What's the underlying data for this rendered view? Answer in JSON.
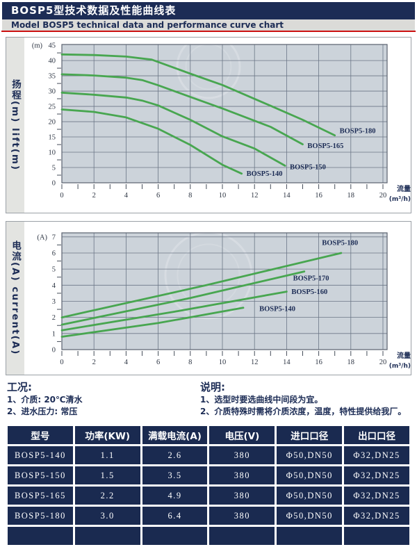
{
  "header": {
    "title_cn": "BOSP5型技术数据及性能曲线表",
    "title_en": "Model BOSP5 technical data and performance curve chart"
  },
  "chart_data": [
    {
      "type": "line",
      "y_axis_title": "扬程(m) lift(m)",
      "y_unit": "(m)",
      "x_label_line1": "流量",
      "x_label_line2": "(m³/h)",
      "xlim": [
        0,
        20
      ],
      "ylim": [
        0,
        45
      ],
      "x_ticks": [
        0,
        2,
        4,
        6,
        8,
        10,
        12,
        14,
        16,
        18,
        20
      ],
      "y_ticks": [
        0,
        5,
        10,
        15,
        20,
        25,
        30,
        35,
        40,
        45
      ],
      "grid": true,
      "series": [
        {
          "name": "BOSP5-180",
          "points": [
            [
              0,
              42
            ],
            [
              2,
              41.8
            ],
            [
              4,
              41.3
            ],
            [
              5.6,
              40.3
            ],
            [
              8,
              35.7
            ],
            [
              10,
              32
            ],
            [
              13,
              25.2
            ],
            [
              15,
              20.6
            ],
            [
              17,
              15.5
            ]
          ],
          "label_at": [
            17.3,
            16.3
          ]
        },
        {
          "name": "BOSP5-165",
          "points": [
            [
              0,
              35.5
            ],
            [
              2,
              35.1
            ],
            [
              4,
              34.4
            ],
            [
              5,
              33.6
            ],
            [
              6,
              31.9
            ],
            [
              8,
              28.1
            ],
            [
              10,
              24.3
            ],
            [
              13,
              18.3
            ],
            [
              15,
              12.6
            ]
          ],
          "label_at": [
            15.3,
            11.4
          ]
        },
        {
          "name": "BOSP5-150",
          "points": [
            [
              0,
              29.5
            ],
            [
              2,
              28.8
            ],
            [
              4,
              27.9
            ],
            [
              5,
              26.9
            ],
            [
              6,
              25.3
            ],
            [
              8,
              20.6
            ],
            [
              10,
              15.2
            ],
            [
              12,
              11.2
            ],
            [
              13.9,
              5.6
            ]
          ],
          "label_at": [
            14.2,
            4.4
          ]
        },
        {
          "name": "BOSP5-140",
          "points": [
            [
              0,
              24
            ],
            [
              2,
              23.2
            ],
            [
              4,
              21.4
            ],
            [
              6,
              17.7
            ],
            [
              8,
              12.4
            ],
            [
              10,
              5.9
            ],
            [
              11.2,
              3.0
            ]
          ],
          "label_at": [
            11.5,
            2.3
          ]
        }
      ]
    },
    {
      "type": "line",
      "y_axis_title": "电流(A) current(A)",
      "y_unit": "(A)",
      "x_label_line1": "流量",
      "x_label_line2": "(m³/h)",
      "xlim": [
        0,
        20
      ],
      "ylim": [
        0,
        7
      ],
      "x_ticks": [
        0,
        2,
        4,
        6,
        8,
        10,
        12,
        14,
        16,
        18,
        20
      ],
      "y_ticks": [
        0,
        1,
        2,
        3,
        4,
        5,
        6,
        7
      ],
      "grid": true,
      "series": [
        {
          "name": "BOSP5-180",
          "points": [
            [
              0,
              2.0
            ],
            [
              9,
              4.0
            ],
            [
              17.4,
              6.0
            ]
          ],
          "label_at": [
            16.2,
            6.5
          ]
        },
        {
          "name": "BOSP5-170",
          "points": [
            [
              0,
              1.55
            ],
            [
              8,
              3.2
            ],
            [
              15.1,
              4.85
            ]
          ],
          "label_at": [
            14.4,
            4.3
          ]
        },
        {
          "name": "BOSP5-160",
          "points": [
            [
              0,
              1.2
            ],
            [
              7,
              2.35
            ],
            [
              14,
              3.6
            ]
          ],
          "label_at": [
            14.3,
            3.45
          ]
        },
        {
          "name": "BOSP5-140",
          "points": [
            [
              0,
              0.8
            ],
            [
              6,
              1.65
            ],
            [
              11.3,
              2.6
            ]
          ],
          "label_at": [
            12.3,
            2.4
          ]
        }
      ]
    }
  ],
  "conditions": {
    "heading": "工况:",
    "items": [
      "1、介质: 20℃清水",
      "2、进水压力: 常压"
    ]
  },
  "notes": {
    "heading": "说明:",
    "items": [
      "1、选型时要选曲线中间段为宜。",
      "2、介质特殊时需将介质浓度，温度，特性提供给我厂。"
    ]
  },
  "table": {
    "headers": [
      "型号",
      "功率(KW)",
      "满载电流(A)",
      "电压(V)",
      "进口口径",
      "出口口径"
    ],
    "rows": [
      [
        "BOSP5-140",
        "1.1",
        "2.6",
        "380",
        "Φ50,DN50",
        "Φ32,DN25"
      ],
      [
        "BOSP5-150",
        "1.5",
        "3.5",
        "380",
        "Φ50,DN50",
        "Φ32,DN25"
      ],
      [
        "BOSP5-165",
        "2.2",
        "4.9",
        "380",
        "Φ50,DN50",
        "Φ32,DN25"
      ],
      [
        "BOSP5-180",
        "3.0",
        "6.4",
        "380",
        "Φ50,DN50",
        "Φ32,DN25"
      ],
      [
        "",
        "",
        "",
        "",
        "",
        ""
      ]
    ]
  },
  "colors": {
    "navy": "#1c2c55",
    "table_cell": "#1a2a50",
    "plot_bg": "#ccd3da",
    "grid": "#6b7686",
    "curve_green": "#48a650",
    "red_line": "#cc1111",
    "subtitle_bg": "#dbdbd8"
  }
}
